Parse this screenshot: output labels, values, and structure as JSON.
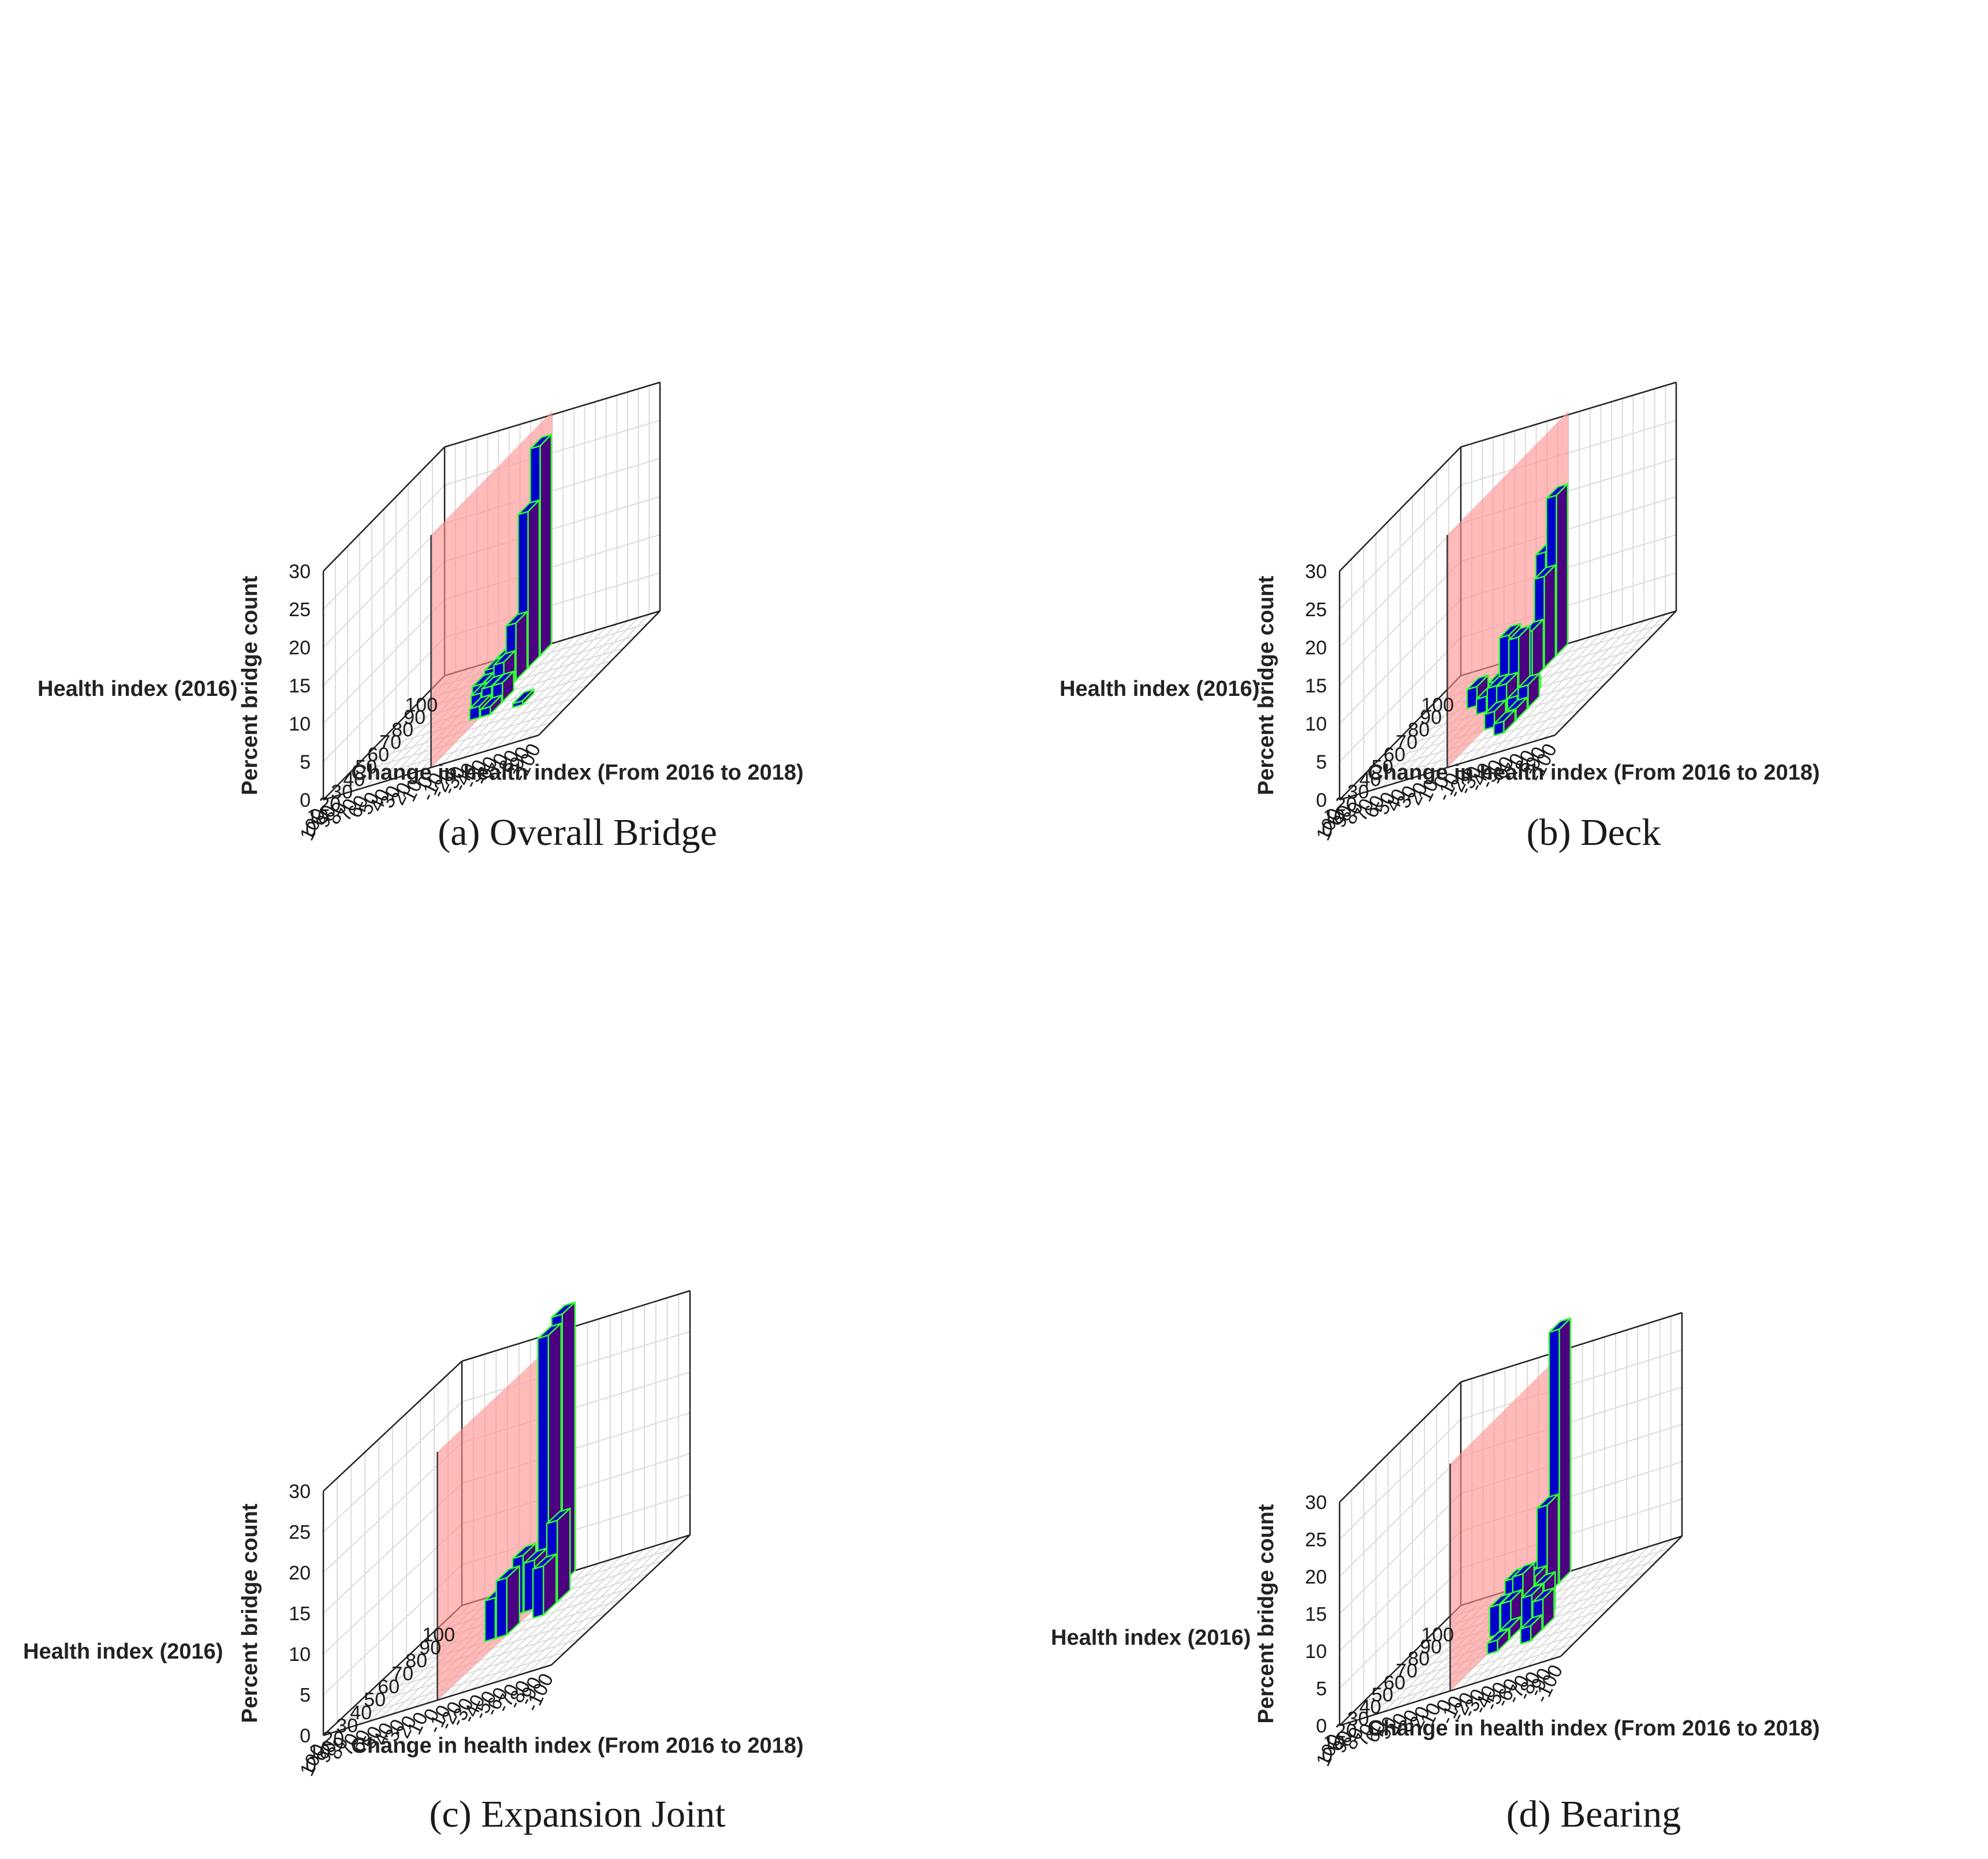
{
  "figure": {
    "colors": {
      "zero_change_plane": "#ff8f8f",
      "front_face": "#0000cc",
      "side_face": "#4b0082",
      "bar_edge": "#33ff33",
      "grid": "#dcdcdc",
      "axis": "#222222"
    }
  },
  "chart_data": [
    {
      "type": "bar3d",
      "caption_letter": "(a)",
      "caption": "Overall Bridge",
      "zlabel": "Percent bridge count",
      "ylabel": "Health index (2016)",
      "xlabel": "Change in health index (From 2016 to 2018)",
      "zlim": [
        0,
        30
      ],
      "z_ticks": [
        "0",
        "5",
        "10",
        "15",
        "20",
        "25",
        "30"
      ],
      "y_ticks": [
        "0",
        "10",
        "20",
        "30",
        "40",
        "50",
        "60",
        "70",
        "80",
        "90",
        "100"
      ],
      "x_ticks": [
        "100",
        "90",
        "80",
        "70",
        "60",
        "50",
        "40",
        "30",
        "20",
        "10",
        "0",
        "-10",
        "-20",
        "-30",
        "-40",
        "-50",
        "-60",
        "-70",
        "-80",
        "-90",
        "-100"
      ],
      "bars": [
        {
          "hi": 95,
          "chg": 5,
          "value": 27.5
        },
        {
          "hi": 85,
          "chg": 5,
          "value": 20.5
        },
        {
          "hi": 95,
          "chg": 15,
          "value": 5.5
        },
        {
          "hi": 85,
          "chg": 15,
          "value": 6.5
        },
        {
          "hi": 75,
          "chg": 5,
          "value": 7.5
        },
        {
          "hi": 75,
          "chg": 15,
          "value": 3
        },
        {
          "hi": 65,
          "chg": 5,
          "value": 4
        },
        {
          "hi": 65,
          "chg": 15,
          "value": 2
        },
        {
          "hi": 95,
          "chg": 25,
          "value": 1
        },
        {
          "hi": 85,
          "chg": 25,
          "value": 2.5
        },
        {
          "hi": 75,
          "chg": 25,
          "value": 2.5
        },
        {
          "hi": 65,
          "chg": 25,
          "value": 2
        },
        {
          "hi": 55,
          "chg": 5,
          "value": 2.5
        },
        {
          "hi": 55,
          "chg": 15,
          "value": 2
        },
        {
          "hi": 55,
          "chg": -5,
          "value": 2.5
        },
        {
          "hi": 45,
          "chg": 5,
          "value": 1.5
        },
        {
          "hi": 45,
          "chg": -5,
          "value": 1
        },
        {
          "hi": 95,
          "chg": 35,
          "value": 1.5
        },
        {
          "hi": 85,
          "chg": 35,
          "value": 1
        },
        {
          "hi": 75,
          "chg": 35,
          "value": 1
        },
        {
          "hi": 45,
          "chg": -35,
          "value": 0.5
        }
      ]
    },
    {
      "type": "bar3d",
      "caption_letter": "(b)",
      "caption": "Deck",
      "zlabel": "Percent bridge count",
      "ylabel": "Health index (2016)",
      "xlabel": "Change in health index (From 2016 to 2018)",
      "zlim": [
        0,
        30
      ],
      "z_ticks": [
        "0",
        "5",
        "10",
        "15",
        "20",
        "25",
        "30"
      ],
      "y_ticks": [
        "0",
        "10",
        "20",
        "30",
        "40",
        "50",
        "60",
        "70",
        "80",
        "90",
        "100"
      ],
      "x_ticks": [
        "100",
        "90",
        "80",
        "70",
        "60",
        "50",
        "40",
        "30",
        "20",
        "10",
        "0",
        "-10",
        "-20",
        "-30",
        "-40",
        "-50",
        "-60",
        "-70",
        "-80",
        "-90",
        "-100"
      ],
      "bars": [
        {
          "hi": 95,
          "chg": 5,
          "value": 21
        },
        {
          "hi": 95,
          "chg": 15,
          "value": 14
        },
        {
          "hi": 85,
          "chg": 5,
          "value": 12
        },
        {
          "hi": 75,
          "chg": 5,
          "value": 6.5
        },
        {
          "hi": 85,
          "chg": 15,
          "value": 4
        },
        {
          "hi": 75,
          "chg": 15,
          "value": 3.5
        },
        {
          "hi": 65,
          "chg": 15,
          "value": 8
        },
        {
          "hi": 55,
          "chg": 15,
          "value": 3
        },
        {
          "hi": 85,
          "chg": 25,
          "value": 1.5
        },
        {
          "hi": 65,
          "chg": 25,
          "value": 2.5
        },
        {
          "hi": 55,
          "chg": 25,
          "value": 2
        },
        {
          "hi": 55,
          "chg": -5,
          "value": 8.5
        },
        {
          "hi": 55,
          "chg": -15,
          "value": 1.5
        },
        {
          "hi": 45,
          "chg": -5,
          "value": 4
        },
        {
          "hi": 45,
          "chg": -15,
          "value": 2
        },
        {
          "hi": 35,
          "chg": -5,
          "value": 2
        },
        {
          "hi": 65,
          "chg": 45,
          "value": 2.5
        },
        {
          "hi": 45,
          "chg": -25,
          "value": 3
        },
        {
          "hi": 35,
          "chg": -25,
          "value": 1.5
        },
        {
          "hi": 25,
          "chg": -25,
          "value": 1.5
        }
      ]
    },
    {
      "type": "bar3d",
      "caption_letter": "(c)",
      "caption": "Expansion Joint",
      "zlabel": "Percent bridge count",
      "ylabel": "Health index (2016)",
      "xlabel": "Change in health index (From 2016 to 2018)",
      "zlim": [
        0,
        30
      ],
      "z_ticks": [
        "0",
        "5",
        "10",
        "15",
        "20",
        "25",
        "30"
      ],
      "y_ticks": [
        "0",
        "10",
        "20",
        "30",
        "40",
        "50",
        "60",
        "70",
        "80",
        "90",
        "100"
      ],
      "x_ticks": [
        "100",
        "90",
        "80",
        "70",
        "60",
        "50",
        "40",
        "30",
        "20",
        "10",
        "0",
        "-10",
        "-20",
        "-30",
        "-40",
        "-50",
        "-60",
        "-70",
        "-80",
        "-90",
        "-100"
      ],
      "bars": [
        {
          "hi": 95,
          "chg": 5,
          "value": 33
        },
        {
          "hi": 85,
          "chg": 5,
          "value": 32
        },
        {
          "hi": 95,
          "chg": 15,
          "value": 14
        },
        {
          "hi": 75,
          "chg": 5,
          "value": 6
        },
        {
          "hi": 75,
          "chg": 15,
          "value": 7
        },
        {
          "hi": 55,
          "chg": 5,
          "value": 7
        },
        {
          "hi": 55,
          "chg": 15,
          "value": 5
        },
        {
          "hi": 75,
          "chg": -15,
          "value": 10
        },
        {
          "hi": 65,
          "chg": -15,
          "value": 6
        }
      ]
    },
    {
      "type": "bar3d",
      "caption_letter": "(d)",
      "caption": "Bearing",
      "zlabel": "Percent bridge count",
      "ylabel": "Health index (2016)",
      "xlabel": "Change in health index (From 2016 to 2018)",
      "zlim": [
        0,
        30
      ],
      "z_ticks": [
        "0",
        "5",
        "10",
        "15",
        "20",
        "25",
        "30"
      ],
      "y_ticks": [
        "0",
        "10",
        "20",
        "30",
        "40",
        "50",
        "60",
        "70",
        "80",
        "90",
        "100"
      ],
      "x_ticks": [
        "100",
        "90",
        "80",
        "70",
        "60",
        "50",
        "40",
        "30",
        "20",
        "10",
        "0",
        "-10",
        "-20",
        "-30",
        "-40",
        "-50",
        "-60",
        "-70",
        "-80",
        "-90",
        "-100"
      ],
      "bars": [
        {
          "hi": 95,
          "chg": 5,
          "value": 34
        },
        {
          "hi": 85,
          "chg": 5,
          "value": 12
        },
        {
          "hi": 95,
          "chg": 15,
          "value": 10
        },
        {
          "hi": 95,
          "chg": 45,
          "value": 2.5
        },
        {
          "hi": 95,
          "chg": 35,
          "value": 2
        },
        {
          "hi": 95,
          "chg": 25,
          "value": 3
        },
        {
          "hi": 75,
          "chg": 5,
          "value": 4
        },
        {
          "hi": 75,
          "chg": 15,
          "value": 4
        },
        {
          "hi": 65,
          "chg": 5,
          "value": 6
        },
        {
          "hi": 65,
          "chg": 15,
          "value": 2
        },
        {
          "hi": 55,
          "chg": 5,
          "value": 4
        },
        {
          "hi": 55,
          "chg": 15,
          "value": 4
        },
        {
          "hi": 45,
          "chg": -5,
          "value": 1.5
        },
        {
          "hi": 35,
          "chg": -5,
          "value": 1.5
        },
        {
          "hi": 55,
          "chg": -25,
          "value": 5
        },
        {
          "hi": 45,
          "chg": -25,
          "value": 5
        },
        {
          "hi": 45,
          "chg": -35,
          "value": 4
        },
        {
          "hi": 35,
          "chg": -35,
          "value": 2
        }
      ]
    }
  ]
}
